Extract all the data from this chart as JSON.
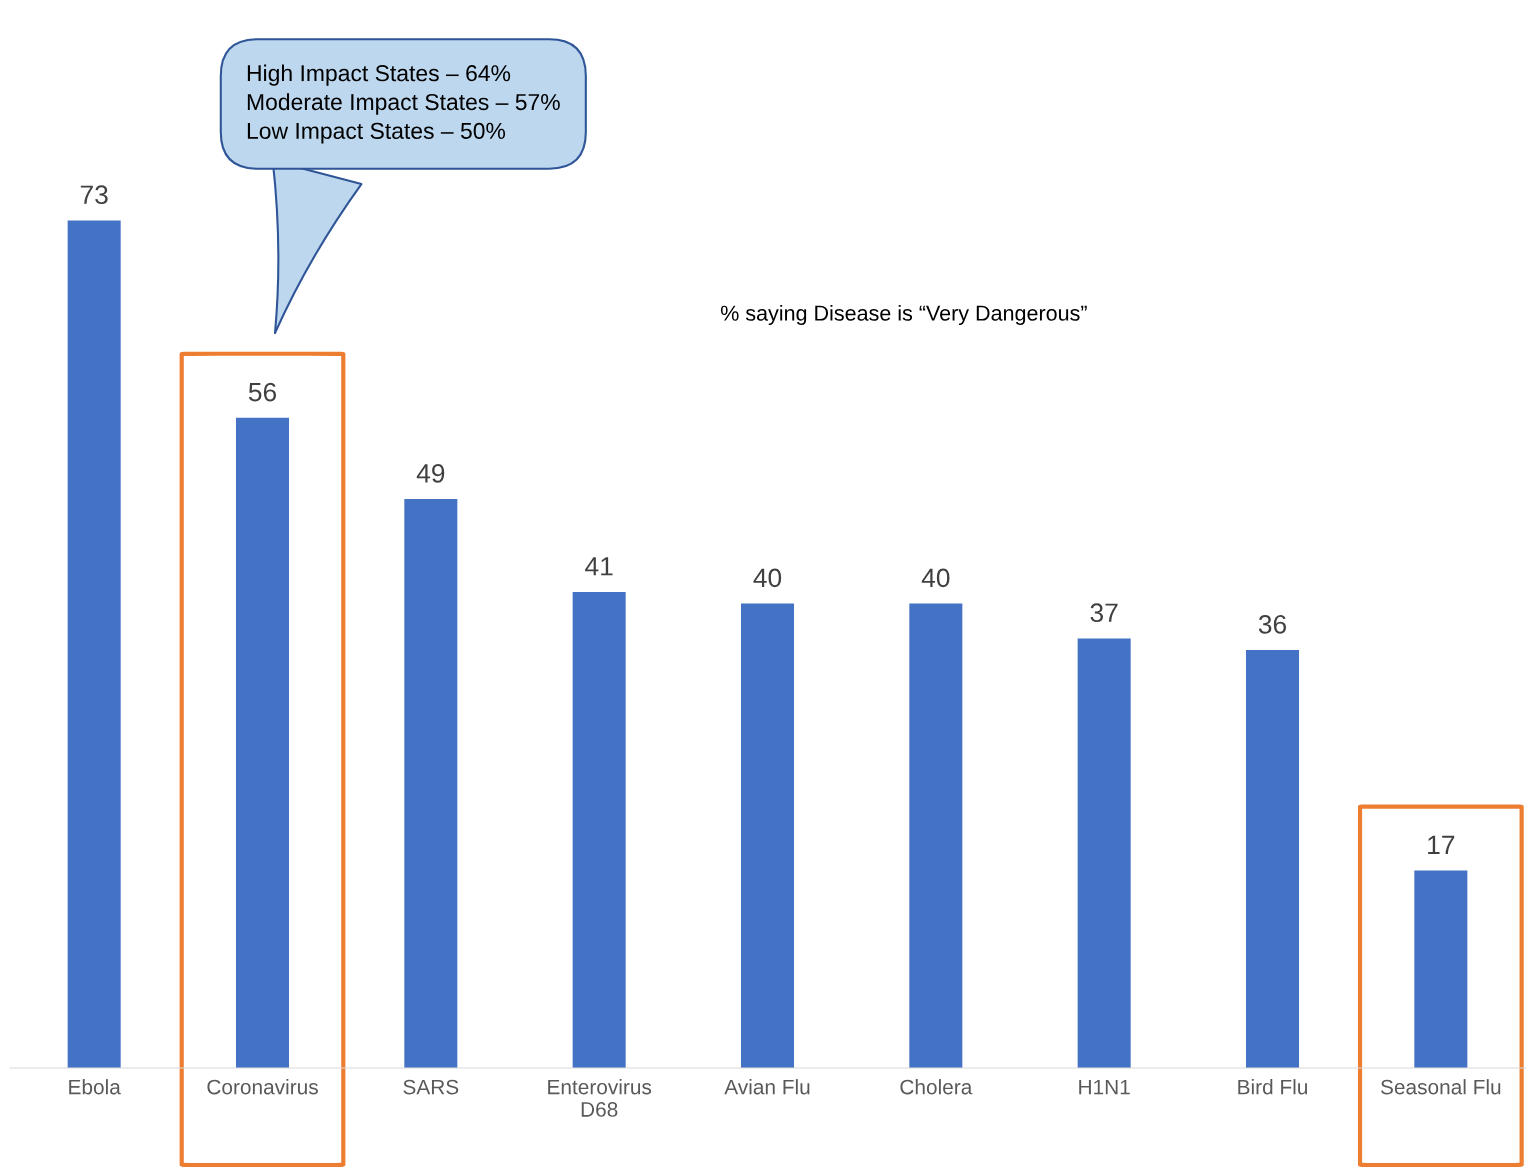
{
  "chart_data": {
    "type": "bar",
    "title": "% saying Disease is “Very Dangerous”",
    "categories": [
      "Ebola",
      "Coronavirus",
      "SARS",
      "Enterovirus\nD68",
      "Avian Flu",
      "Cholera",
      "H1N1",
      "Bird Flu",
      "Seasonal Flu"
    ],
    "values": [
      73,
      56,
      49,
      41,
      40,
      40,
      37,
      36,
      17
    ],
    "color": "#4472c4",
    "data_labels": true,
    "grid": false,
    "annotations": [
      "High Impact States – 64%\nModerate Impact States – 57%\nLow Impact States – 50%"
    ]
  }
}
